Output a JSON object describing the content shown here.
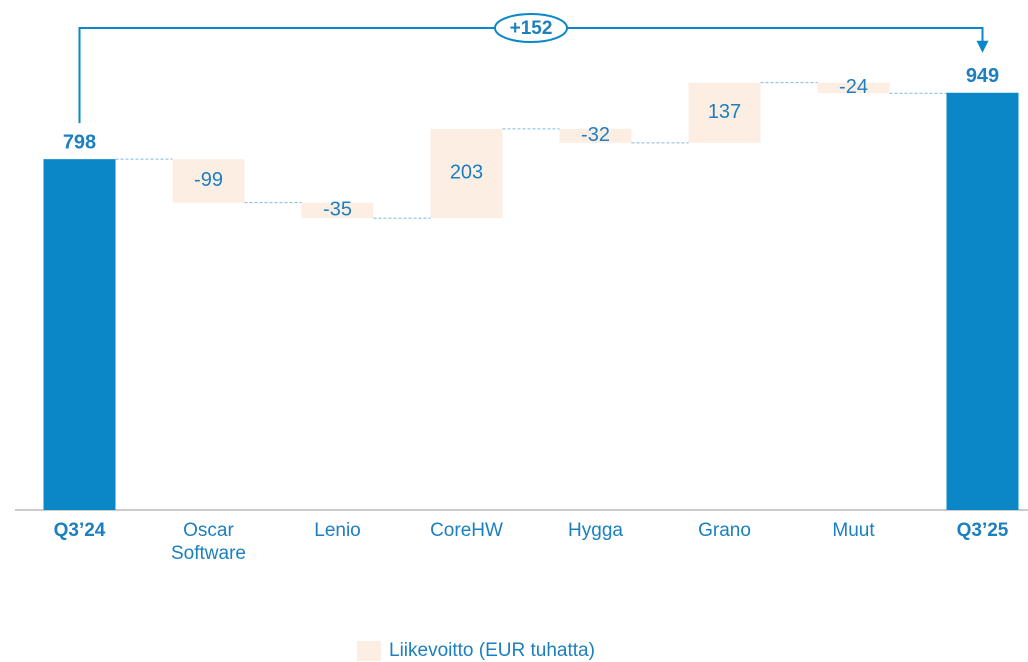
{
  "chart_data": {
    "type": "waterfall",
    "categories": [
      "Q3’24",
      "Oscar Software",
      "Lenio",
      "CoreHW",
      "Hygga",
      "Grano",
      "Muut",
      "Q3’25"
    ],
    "totals": [
      true,
      false,
      false,
      false,
      false,
      false,
      false,
      true
    ],
    "series": [
      {
        "name": "Liikevoitto (EUR tuhatta)",
        "color": "#fdeee3",
        "values": [
          798,
          -99,
          -35,
          203,
          -32,
          137,
          -24,
          949
        ]
      }
    ],
    "total_color": "#0b87c7",
    "ylim": [
      0,
      1160
    ],
    "annotation": "+152",
    "legend": "bottom"
  }
}
